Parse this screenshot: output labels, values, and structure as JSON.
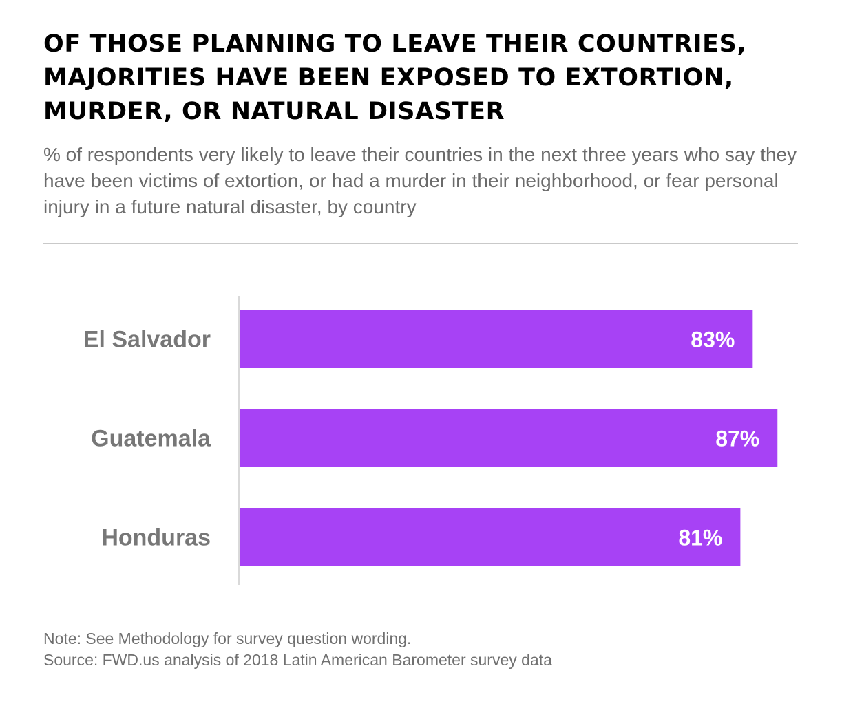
{
  "header": {
    "title": "OF THOSE PLANNING TO LEAVE THEIR COUNTRIES, MAJORITIES HAVE BEEN EXPOSED TO EXTORTION, MURDER, OR NATURAL DISASTER",
    "subtitle": "% of respondents very likely to leave their countries in the next three years who say they have been victims of extortion, or had a murder in their neighborhood, or fear personal injury in a future natural disaster, by country"
  },
  "footer": {
    "note": "Note: See Methodology for survey question wording.",
    "source": "Source: FWD.us analysis of 2018 Latin American Barometer survey data"
  },
  "chart_data": {
    "type": "bar",
    "orientation": "horizontal",
    "categories": [
      "El Salvador",
      "Guatemala",
      "Honduras"
    ],
    "values": [
      83,
      87,
      81
    ],
    "value_labels": [
      "83%",
      "87%",
      "81%"
    ],
    "xlim": [
      0,
      100
    ],
    "grid": false,
    "colors": {
      "bar": "#a742f5",
      "category_label": "#777777",
      "value_label": "#ffffff",
      "axis_line": "#d9d9d9"
    }
  }
}
